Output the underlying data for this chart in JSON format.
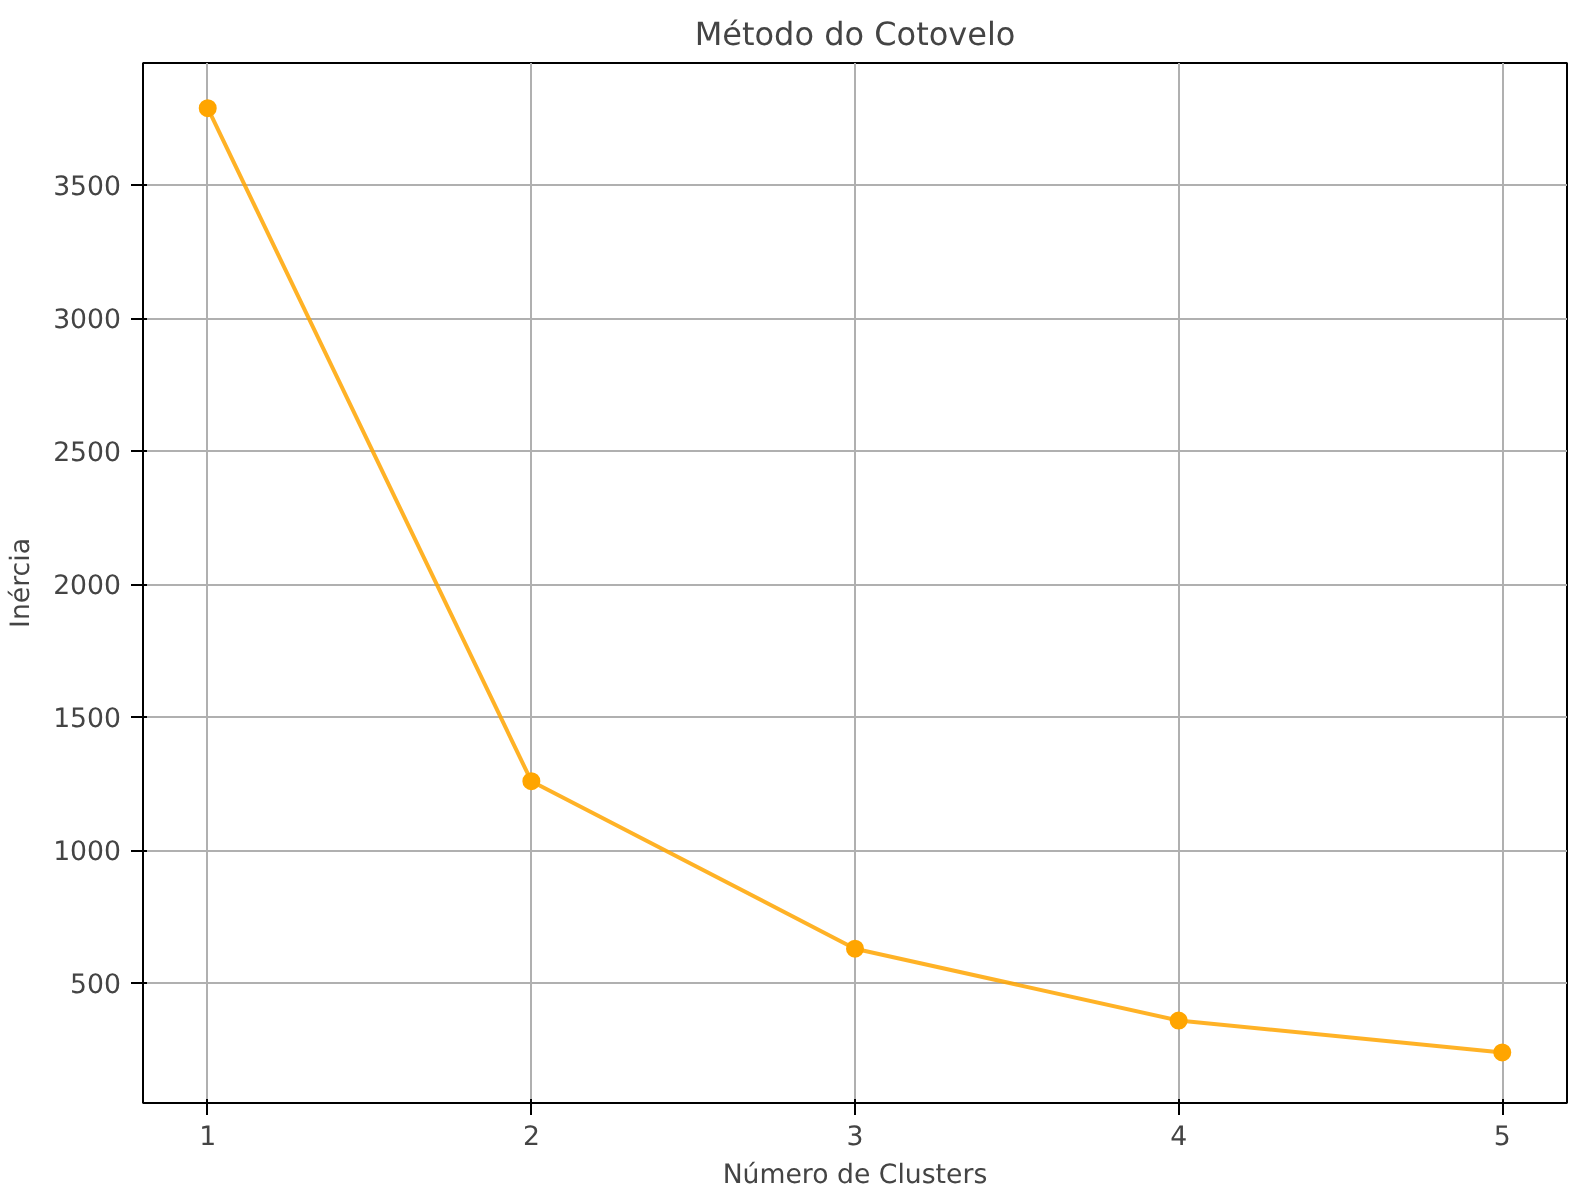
{
  "chart_data": {
    "type": "line",
    "title": "Método do Cotovelo",
    "xlabel": "Número de Clusters",
    "ylabel": "Inércia",
    "x": [
      1,
      2,
      3,
      4,
      5
    ],
    "series": [
      {
        "color": "#ffa500",
        "values": [
          3790,
          1260,
          630,
          360,
          240
        ]
      }
    ],
    "xlim": [
      0.8,
      5.2
    ],
    "xticks": [
      1,
      2,
      3,
      4,
      5
    ],
    "ylim": [
      50,
      3960
    ],
    "yticks": [
      500,
      1000,
      1500,
      2000,
      2500,
      3000,
      3500
    ],
    "grid": true,
    "marker": "circle",
    "line_style": "solid"
  }
}
